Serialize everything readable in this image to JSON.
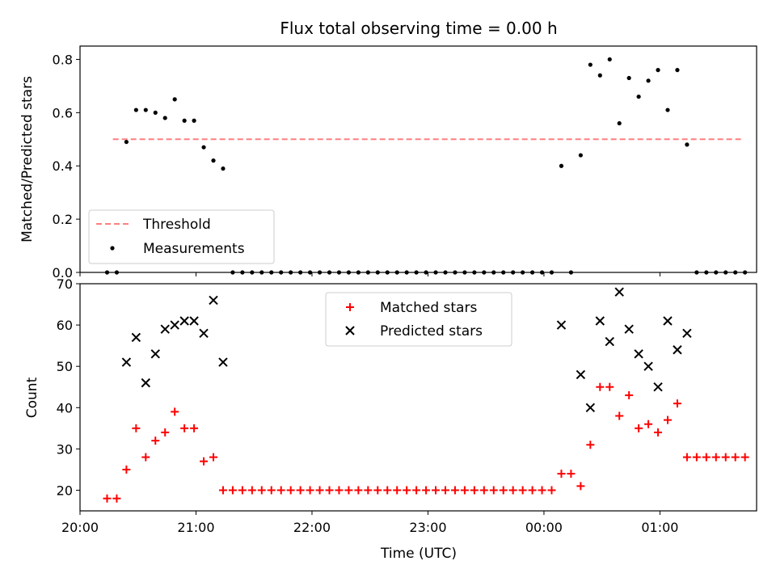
{
  "chart_data": [
    {
      "type": "scatter",
      "title": "Flux total observing time = 0.00 h",
      "xlabel": "",
      "ylabel": "Matched/Predicted stars",
      "ylim": [
        0.0,
        0.85
      ],
      "yticks": [
        "0.0",
        "0.2",
        "0.4",
        "0.6",
        "0.8"
      ],
      "yticks_values": [
        0.0,
        0.2,
        0.4,
        0.6,
        0.8
      ],
      "xlim": [
        "20:00",
        "01:50"
      ],
      "legend_position": "lower-left",
      "threshold": {
        "name": "Threshold",
        "value": 0.5,
        "x_start": "20:17",
        "x_end": "01:42",
        "color": "#ff7f7f",
        "style": "dashed"
      },
      "series": [
        {
          "name": "Measurements",
          "color": "#000000",
          "marker": "dot",
          "x": [
            "20:14",
            "20:19",
            "20:24",
            "20:29",
            "20:34",
            "20:39",
            "20:44",
            "20:49",
            "20:54",
            "20:59",
            "21:04",
            "21:09",
            "21:14",
            "21:19",
            "21:24",
            "21:29",
            "21:34",
            "21:39",
            "21:44",
            "21:49",
            "21:54",
            "21:59",
            "22:04",
            "22:09",
            "22:14",
            "22:19",
            "22:24",
            "22:29",
            "22:34",
            "22:39",
            "22:44",
            "22:49",
            "22:54",
            "22:59",
            "23:04",
            "23:09",
            "23:14",
            "23:19",
            "23:24",
            "23:29",
            "23:34",
            "23:39",
            "23:44",
            "23:49",
            "23:54",
            "23:59",
            "00:04",
            "00:09",
            "00:14",
            "00:19",
            "00:24",
            "00:29",
            "00:34",
            "00:39",
            "00:44",
            "00:49",
            "00:54",
            "00:59",
            "01:04",
            "01:09",
            "01:14",
            "01:19",
            "01:24",
            "01:29",
            "01:34",
            "01:39",
            "01:44"
          ],
          "y": [
            0.0,
            0.0,
            0.49,
            0.61,
            0.61,
            0.6,
            0.58,
            0.65,
            0.57,
            0.57,
            0.47,
            0.42,
            0.39,
            0.0,
            0.0,
            0.0,
            0.0,
            0.0,
            0.0,
            0.0,
            0.0,
            0.0,
            0.0,
            0.0,
            0.0,
            0.0,
            0.0,
            0.0,
            0.0,
            0.0,
            0.0,
            0.0,
            0.0,
            0.0,
            0.0,
            0.0,
            0.0,
            0.0,
            0.0,
            0.0,
            0.0,
            0.0,
            0.0,
            0.0,
            0.0,
            0.0,
            0.0,
            0.4,
            0.0,
            0.44,
            0.78,
            0.74,
            0.8,
            0.56,
            0.73,
            0.66,
            0.72,
            0.76,
            0.61,
            0.76,
            0.48,
            0.0,
            0.0,
            0.0,
            0.0,
            0.0,
            0.0
          ]
        }
      ]
    },
    {
      "type": "scatter",
      "title": "",
      "xlabel": "Time (UTC)",
      "ylabel": "Count",
      "ylim": [
        15,
        70
      ],
      "yticks": [
        "20",
        "30",
        "40",
        "50",
        "60",
        "70"
      ],
      "yticks_values": [
        20,
        30,
        40,
        50,
        60,
        70
      ],
      "xlim": [
        "20:00",
        "01:50"
      ],
      "xticks": [
        "20:00",
        "21:00",
        "22:00",
        "23:00",
        "00:00",
        "01:00"
      ],
      "legend_position": "upper-center",
      "series": [
        {
          "name": "Matched stars",
          "color": "#ff0000",
          "marker": "plus",
          "x": [
            "20:14",
            "20:19",
            "20:24",
            "20:29",
            "20:34",
            "20:39",
            "20:44",
            "20:49",
            "20:54",
            "20:59",
            "21:04",
            "21:09",
            "21:14",
            "21:19",
            "21:24",
            "21:29",
            "21:34",
            "21:39",
            "21:44",
            "21:49",
            "21:54",
            "21:59",
            "22:04",
            "22:09",
            "22:14",
            "22:19",
            "22:24",
            "22:29",
            "22:34",
            "22:39",
            "22:44",
            "22:49",
            "22:54",
            "22:59",
            "23:04",
            "23:09",
            "23:14",
            "23:19",
            "23:24",
            "23:29",
            "23:34",
            "23:39",
            "23:44",
            "23:49",
            "23:54",
            "23:59",
            "00:04",
            "00:09",
            "00:14",
            "00:19",
            "00:24",
            "00:29",
            "00:34",
            "00:39",
            "00:44",
            "00:49",
            "00:54",
            "00:59",
            "01:04",
            "01:09",
            "01:14",
            "01:19",
            "01:24",
            "01:29",
            "01:34",
            "01:39",
            "01:44"
          ],
          "y": [
            18,
            18,
            25,
            35,
            28,
            32,
            34,
            39,
            35,
            35,
            27,
            28,
            20,
            20,
            20,
            20,
            20,
            20,
            20,
            20,
            20,
            20,
            20,
            20,
            20,
            20,
            20,
            20,
            20,
            20,
            20,
            20,
            20,
            20,
            20,
            20,
            20,
            20,
            20,
            20,
            20,
            20,
            20,
            20,
            20,
            20,
            20,
            24,
            24,
            21,
            31,
            45,
            45,
            38,
            43,
            35,
            36,
            34,
            37,
            41,
            28,
            28,
            28,
            28,
            28,
            28,
            28
          ]
        },
        {
          "name": "Predicted stars",
          "color": "#000000",
          "marker": "x",
          "x": [
            "20:24",
            "20:29",
            "20:34",
            "20:39",
            "20:44",
            "20:49",
            "20:54",
            "20:59",
            "21:04",
            "21:09",
            "21:14",
            "00:09",
            "00:19",
            "00:24",
            "00:29",
            "00:34",
            "00:39",
            "00:44",
            "00:49",
            "00:54",
            "00:59",
            "01:04",
            "01:09",
            "01:14"
          ],
          "y": [
            51,
            57,
            46,
            53,
            59,
            60,
            61,
            61,
            58,
            66,
            51,
            60,
            48,
            40,
            61,
            56,
            68,
            59,
            53,
            50,
            45,
            61,
            54,
            58
          ]
        }
      ]
    }
  ]
}
